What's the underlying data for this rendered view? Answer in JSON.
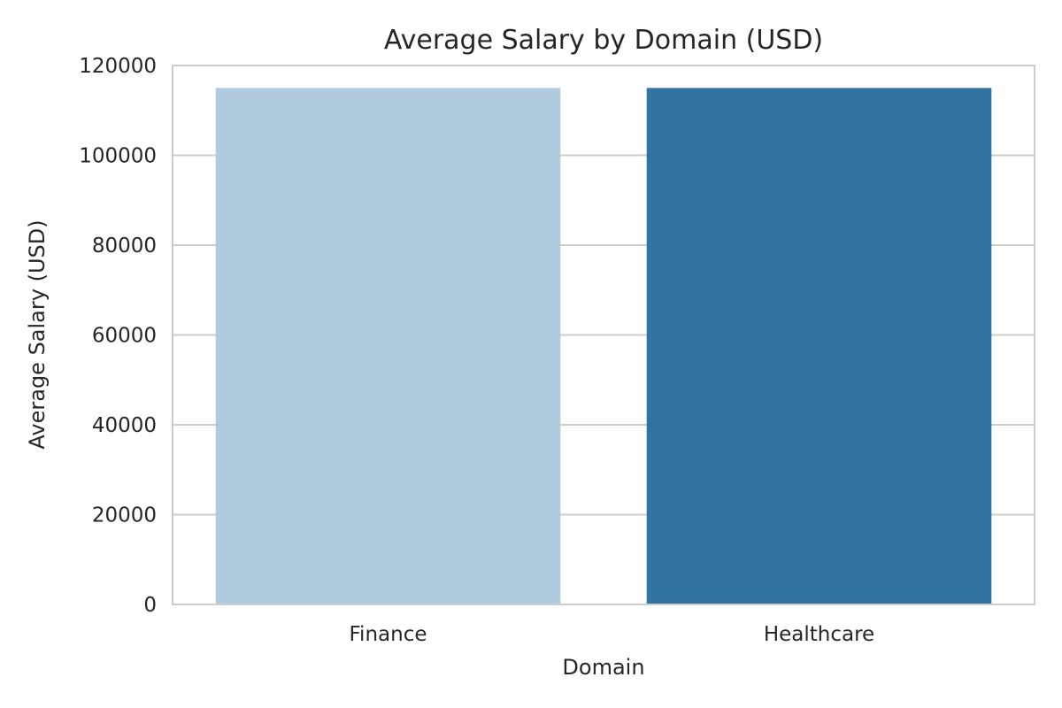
{
  "chart_data": {
    "type": "bar",
    "title": "Average Salary by Domain (USD)",
    "xlabel": "Domain",
    "ylabel": "Average Salary (USD)",
    "categories": [
      "Finance",
      "Healthcare"
    ],
    "values": [
      115000,
      115000
    ],
    "colors": [
      "#afcbdd",
      "#3274a1"
    ],
    "ylim": [
      0,
      120000
    ],
    "yticks": [
      0,
      20000,
      40000,
      60000,
      80000,
      100000,
      120000
    ],
    "ytick_labels": [
      "0",
      "20000",
      "40000",
      "60000",
      "80000",
      "100000",
      "120000"
    ],
    "grid": true,
    "grid_axis": "y",
    "gridColor": "#cccccc",
    "textColor": "#262626"
  }
}
